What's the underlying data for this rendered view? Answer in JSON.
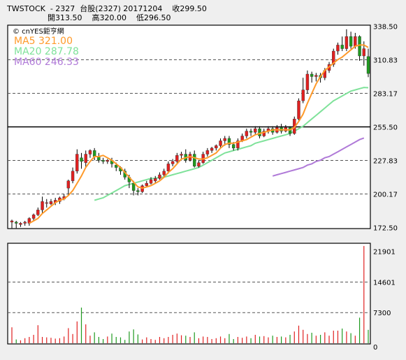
{
  "header": {
    "line1": "TWSTOCK  - 2327  台股(2327) 20171204    收299.50",
    "line2": "開313.50    高320.00    低296.50"
  },
  "legend": {
    "brand": "© cnYES鉅亨網",
    "ma5": "MA5 321.00",
    "ma20": "MA20 287.78",
    "ma60": "MA60 246.33"
  },
  "colors": {
    "up": "#e02020",
    "down": "#1f9a1f",
    "ma5": "#ff9a2a",
    "ma20": "#7fe29a",
    "ma60": "#b07ad8"
  },
  "chart_data": [
    {
      "type": "candlestick",
      "ylim": [
        172.5,
        338.5
      ],
      "ticks": [
        "338.50",
        "310.83",
        "283.17",
        "255.50",
        "227.83",
        "200.17",
        "172.50"
      ],
      "candles": [
        [
          177,
          178,
          172,
          179
        ],
        [
          177,
          176,
          172,
          178
        ],
        [
          175,
          176,
          173,
          177
        ],
        [
          176,
          177,
          174,
          178
        ],
        [
          176,
          180,
          174,
          181
        ],
        [
          180,
          183,
          178,
          184
        ],
        [
          183,
          187,
          182,
          189
        ],
        [
          187,
          194,
          184,
          198
        ],
        [
          193,
          193,
          189,
          196
        ],
        [
          192,
          194,
          191,
          196
        ],
        [
          193,
          195,
          191,
          197
        ],
        [
          194,
          197,
          192,
          198
        ],
        [
          196,
          198,
          195,
          200
        ],
        [
          205,
          211,
          199,
          212
        ],
        [
          211,
          219,
          209,
          222
        ],
        [
          219,
          233,
          217,
          237
        ],
        [
          230,
          227,
          221,
          234
        ],
        [
          226,
          233,
          222,
          236
        ],
        [
          233,
          236,
          230,
          237
        ],
        [
          236,
          231,
          228,
          238
        ],
        [
          231,
          228,
          226,
          234
        ],
        [
          228,
          227,
          225,
          230
        ],
        [
          227,
          228,
          225,
          229
        ],
        [
          228,
          225,
          222,
          230
        ],
        [
          224,
          222,
          219,
          226
        ],
        [
          222,
          219,
          216,
          223
        ],
        [
          219,
          214,
          212,
          221
        ],
        [
          214,
          210,
          205,
          216
        ],
        [
          209,
          203,
          199,
          211
        ],
        [
          203,
          202,
          199,
          205
        ],
        [
          202,
          207,
          201,
          208
        ],
        [
          207,
          209,
          206,
          211
        ],
        [
          209,
          212,
          208,
          214
        ],
        [
          211,
          213,
          209,
          215
        ],
        [
          213,
          216,
          212,
          218
        ],
        [
          216,
          219,
          214,
          221
        ],
        [
          219,
          225,
          217,
          227
        ],
        [
          225,
          227,
          223,
          229
        ],
        [
          227,
          232,
          225,
          234
        ],
        [
          232,
          233,
          229,
          235
        ],
        [
          233,
          228,
          226,
          237
        ],
        [
          228,
          233,
          227,
          235
        ],
        [
          233,
          223,
          222,
          236
        ],
        [
          223,
          226,
          222,
          228
        ],
        [
          226,
          233,
          225,
          235
        ],
        [
          233,
          236,
          231,
          238
        ],
        [
          236,
          238,
          234,
          239
        ],
        [
          238,
          240,
          236,
          241
        ],
        [
          240,
          244,
          238,
          246
        ],
        [
          244,
          246,
          240,
          248
        ],
        [
          246,
          241,
          238,
          248
        ],
        [
          241,
          238,
          236,
          243
        ],
        [
          238,
          244,
          236,
          246
        ],
        [
          244,
          248,
          243,
          250
        ],
        [
          248,
          252,
          246,
          254
        ],
        [
          252,
          251,
          248,
          254
        ],
        [
          251,
          254,
          249,
          256
        ],
        [
          254,
          248,
          246,
          256
        ],
        [
          248,
          252,
          247,
          254
        ],
        [
          252,
          254,
          250,
          256
        ],
        [
          254,
          251,
          249,
          256
        ],
        [
          251,
          255,
          250,
          257
        ],
        [
          255,
          252,
          250,
          258
        ],
        [
          252,
          255,
          251,
          257
        ],
        [
          255,
          250,
          248,
          256
        ],
        [
          250,
          262,
          249,
          264
        ],
        [
          262,
          277,
          260,
          279
        ],
        [
          277,
          286,
          275,
          296
        ],
        [
          286,
          299,
          283,
          302
        ],
        [
          299,
          297,
          292,
          301
        ],
        [
          297,
          298,
          293,
          300
        ],
        [
          298,
          296,
          292,
          300
        ],
        [
          296,
          302,
          294,
          304
        ],
        [
          302,
          307,
          300,
          309
        ],
        [
          307,
          318,
          305,
          320
        ],
        [
          318,
          323,
          315,
          325
        ],
        [
          323,
          320,
          318,
          330
        ],
        [
          320,
          330,
          318,
          336
        ],
        [
          330,
          322,
          320,
          334
        ],
        [
          322,
          330,
          320,
          333
        ],
        [
          330,
          314,
          310,
          331
        ],
        [
          314,
          320,
          306,
          326
        ],
        [
          313.5,
          299.5,
          296.5,
          320
        ]
      ],
      "ma5": [
        null,
        null,
        null,
        null,
        176,
        178,
        180,
        184,
        187,
        190,
        193,
        195,
        196,
        199,
        203,
        209,
        215,
        222,
        227,
        231,
        231,
        232,
        230,
        228,
        225,
        222,
        218,
        214,
        210,
        206,
        205,
        206,
        207,
        209,
        211,
        214,
        218,
        221,
        225,
        229,
        230,
        231,
        230,
        229,
        229,
        230,
        232,
        234,
        238,
        241,
        242,
        242,
        243,
        244,
        245,
        247,
        249,
        250,
        251,
        252,
        253,
        253,
        253,
        253,
        253,
        255,
        260,
        266,
        275,
        283,
        291,
        297,
        302,
        305,
        308,
        311,
        313,
        316,
        319,
        322,
        323,
        323,
        321
      ],
      "ma20": [
        null,
        null,
        null,
        null,
        null,
        null,
        null,
        null,
        null,
        null,
        null,
        null,
        null,
        null,
        null,
        null,
        null,
        null,
        null,
        195,
        196,
        197,
        199,
        201,
        203,
        205,
        207,
        208,
        209,
        210,
        211,
        212,
        213,
        213,
        214,
        214,
        215,
        216,
        217,
        218,
        219,
        220,
        221,
        222,
        224,
        226,
        228,
        230,
        232,
        234,
        235,
        236,
        237,
        238,
        239,
        240,
        242,
        243,
        244,
        245,
        246,
        247,
        248,
        249,
        250,
        252,
        254,
        256,
        259,
        262,
        265,
        268,
        271,
        274,
        277,
        279,
        281,
        283,
        285,
        286,
        287,
        288,
        287.78
      ],
      "ma60": [
        null,
        null,
        null,
        null,
        null,
        null,
        null,
        null,
        null,
        null,
        null,
        null,
        null,
        null,
        null,
        null,
        null,
        null,
        null,
        null,
        null,
        null,
        null,
        null,
        null,
        null,
        null,
        null,
        null,
        null,
        null,
        null,
        null,
        null,
        null,
        null,
        null,
        null,
        null,
        null,
        null,
        null,
        null,
        null,
        null,
        null,
        null,
        null,
        null,
        null,
        null,
        null,
        null,
        null,
        null,
        null,
        null,
        null,
        null,
        null,
        215,
        216,
        217,
        218,
        219,
        220,
        221,
        222,
        224,
        225,
        227,
        228,
        230,
        231,
        233,
        235,
        237,
        239,
        241,
        243,
        245,
        246.33
      ]
    },
    {
      "type": "bar",
      "ylim": [
        0,
        23600
      ],
      "ticks": [
        "21901",
        "14601",
        "7300",
        "0"
      ],
      "volume": [
        3800,
        900,
        700,
        1200,
        1500,
        2000,
        4300,
        1500,
        1400,
        1300,
        1100,
        1200,
        1600,
        3600,
        2200,
        5200,
        8500,
        4500,
        1800,
        2600,
        1500,
        1000,
        1600,
        2300,
        1500,
        1400,
        800,
        2800,
        3300,
        2100,
        900,
        1400,
        1000,
        800,
        1500,
        1200,
        1500,
        2000,
        2300,
        1900,
        1800,
        1500,
        2600,
        1200,
        1600,
        1500,
        1000,
        1200,
        1600,
        1200,
        2200,
        1000,
        1500,
        1300,
        1600,
        1200,
        2000,
        1600,
        1700,
        1400,
        1800,
        1500,
        1600,
        1400,
        2000,
        2800,
        4200,
        3200,
        2200,
        2500,
        1800,
        2000,
        2600,
        1800,
        3000,
        3000,
        3500,
        2800,
        2400,
        1800,
        6100,
        23200,
        3200
      ]
    }
  ]
}
